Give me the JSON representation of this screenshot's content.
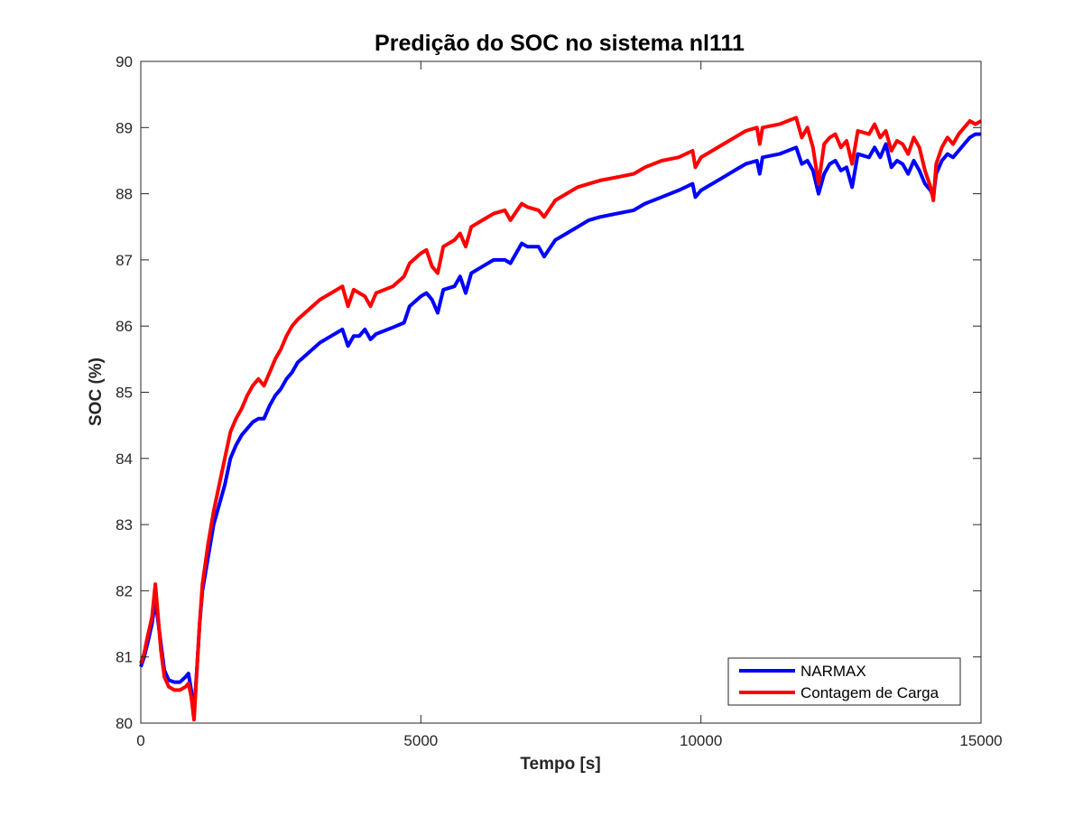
{
  "chart_data": {
    "type": "line",
    "title": "Predição do SOC no sistema nl111",
    "xlabel": "Tempo [s]",
    "ylabel": "SOC (%)",
    "xlim": [
      0,
      15000
    ],
    "ylim": [
      80,
      90
    ],
    "xticks": [
      0,
      5000,
      10000,
      15000
    ],
    "xtick_labels": [
      "0",
      "5000",
      "10000",
      "15000"
    ],
    "yticks": [
      80,
      81,
      82,
      83,
      84,
      85,
      86,
      87,
      88,
      89,
      90
    ],
    "ytick_labels": [
      "80",
      "81",
      "82",
      "83",
      "84",
      "85",
      "86",
      "87",
      "88",
      "89",
      "90"
    ],
    "grid": false,
    "legend_position": "bottom-right",
    "series": [
      {
        "name": "NARMAX",
        "color": "#0000ff",
        "points": [
          [
            0,
            80.85
          ],
          [
            60,
            81.0
          ],
          [
            120,
            81.2
          ],
          [
            200,
            81.5
          ],
          [
            260,
            81.85
          ],
          [
            300,
            81.6
          ],
          [
            360,
            81.2
          ],
          [
            420,
            80.8
          ],
          [
            500,
            80.65
          ],
          [
            600,
            80.62
          ],
          [
            700,
            80.62
          ],
          [
            800,
            80.7
          ],
          [
            850,
            80.75
          ],
          [
            900,
            80.5
          ],
          [
            950,
            80.15
          ],
          [
            1000,
            80.8
          ],
          [
            1050,
            81.5
          ],
          [
            1100,
            82.0
          ],
          [
            1200,
            82.5
          ],
          [
            1300,
            83.0
          ],
          [
            1400,
            83.3
          ],
          [
            1500,
            83.6
          ],
          [
            1600,
            84.0
          ],
          [
            1700,
            84.2
          ],
          [
            1800,
            84.35
          ],
          [
            1900,
            84.45
          ],
          [
            2000,
            84.55
          ],
          [
            2100,
            84.6
          ],
          [
            2200,
            84.6
          ],
          [
            2300,
            84.8
          ],
          [
            2400,
            84.95
          ],
          [
            2500,
            85.05
          ],
          [
            2600,
            85.2
          ],
          [
            2700,
            85.3
          ],
          [
            2800,
            85.45
          ],
          [
            3000,
            85.6
          ],
          [
            3200,
            85.75
          ],
          [
            3400,
            85.85
          ],
          [
            3600,
            85.95
          ],
          [
            3700,
            85.7
          ],
          [
            3800,
            85.85
          ],
          [
            3900,
            85.85
          ],
          [
            4000,
            85.95
          ],
          [
            4100,
            85.8
          ],
          [
            4200,
            85.88
          ],
          [
            4500,
            85.98
          ],
          [
            4700,
            86.05
          ],
          [
            4800,
            86.3
          ],
          [
            5000,
            86.45
          ],
          [
            5100,
            86.5
          ],
          [
            5200,
            86.4
          ],
          [
            5300,
            86.2
          ],
          [
            5400,
            86.55
          ],
          [
            5600,
            86.6
          ],
          [
            5700,
            86.75
          ],
          [
            5800,
            86.5
          ],
          [
            5900,
            86.8
          ],
          [
            6100,
            86.9
          ],
          [
            6300,
            87.0
          ],
          [
            6500,
            87.0
          ],
          [
            6600,
            86.95
          ],
          [
            6800,
            87.25
          ],
          [
            6900,
            87.2
          ],
          [
            7100,
            87.2
          ],
          [
            7200,
            87.05
          ],
          [
            7400,
            87.3
          ],
          [
            7600,
            87.4
          ],
          [
            7800,
            87.5
          ],
          [
            8000,
            87.6
          ],
          [
            8200,
            87.65
          ],
          [
            8500,
            87.7
          ],
          [
            8800,
            87.75
          ],
          [
            9000,
            87.85
          ],
          [
            9300,
            87.95
          ],
          [
            9600,
            88.05
          ],
          [
            9850,
            88.15
          ],
          [
            9900,
            87.95
          ],
          [
            10000,
            88.05
          ],
          [
            10200,
            88.15
          ],
          [
            10400,
            88.25
          ],
          [
            10600,
            88.35
          ],
          [
            10800,
            88.45
          ],
          [
            11000,
            88.5
          ],
          [
            11050,
            88.3
          ],
          [
            11100,
            88.55
          ],
          [
            11400,
            88.6
          ],
          [
            11700,
            88.7
          ],
          [
            11800,
            88.45
          ],
          [
            11900,
            88.5
          ],
          [
            12000,
            88.35
          ],
          [
            12100,
            88.0
          ],
          [
            12200,
            88.3
          ],
          [
            12300,
            88.45
          ],
          [
            12400,
            88.5
          ],
          [
            12500,
            88.35
          ],
          [
            12600,
            88.4
          ],
          [
            12700,
            88.1
          ],
          [
            12800,
            88.6
          ],
          [
            13000,
            88.55
          ],
          [
            13100,
            88.7
          ],
          [
            13200,
            88.55
          ],
          [
            13300,
            88.75
          ],
          [
            13400,
            88.4
          ],
          [
            13500,
            88.5
          ],
          [
            13600,
            88.45
          ],
          [
            13700,
            88.3
          ],
          [
            13800,
            88.5
          ],
          [
            13900,
            88.35
          ],
          [
            14000,
            88.15
          ],
          [
            14100,
            88.05
          ],
          [
            14150,
            87.95
          ],
          [
            14200,
            88.3
          ],
          [
            14300,
            88.5
          ],
          [
            14400,
            88.6
          ],
          [
            14500,
            88.55
          ],
          [
            14600,
            88.65
          ],
          [
            14700,
            88.75
          ],
          [
            14800,
            88.85
          ],
          [
            14900,
            88.9
          ],
          [
            15000,
            88.9
          ]
        ]
      },
      {
        "name": "Contagem de Carga",
        "color": "#ff0000",
        "points": [
          [
            0,
            80.9
          ],
          [
            60,
            81.05
          ],
          [
            120,
            81.3
          ],
          [
            200,
            81.6
          ],
          [
            260,
            82.1
          ],
          [
            300,
            81.7
          ],
          [
            360,
            81.1
          ],
          [
            420,
            80.7
          ],
          [
            500,
            80.55
          ],
          [
            600,
            80.5
          ],
          [
            700,
            80.5
          ],
          [
            800,
            80.55
          ],
          [
            850,
            80.6
          ],
          [
            900,
            80.4
          ],
          [
            950,
            80.05
          ],
          [
            1000,
            80.8
          ],
          [
            1050,
            81.5
          ],
          [
            1100,
            82.1
          ],
          [
            1200,
            82.7
          ],
          [
            1300,
            83.2
          ],
          [
            1400,
            83.6
          ],
          [
            1500,
            84.0
          ],
          [
            1600,
            84.4
          ],
          [
            1700,
            84.6
          ],
          [
            1800,
            84.75
          ],
          [
            1900,
            84.95
          ],
          [
            2000,
            85.1
          ],
          [
            2100,
            85.2
          ],
          [
            2200,
            85.1
          ],
          [
            2300,
            85.3
          ],
          [
            2400,
            85.5
          ],
          [
            2500,
            85.65
          ],
          [
            2600,
            85.85
          ],
          [
            2700,
            86.0
          ],
          [
            2800,
            86.1
          ],
          [
            3000,
            86.25
          ],
          [
            3200,
            86.4
          ],
          [
            3400,
            86.5
          ],
          [
            3600,
            86.6
          ],
          [
            3700,
            86.3
          ],
          [
            3800,
            86.55
          ],
          [
            3900,
            86.5
          ],
          [
            4000,
            86.45
          ],
          [
            4100,
            86.3
          ],
          [
            4200,
            86.5
          ],
          [
            4500,
            86.6
          ],
          [
            4700,
            86.75
          ],
          [
            4800,
            86.95
          ],
          [
            5000,
            87.1
          ],
          [
            5100,
            87.15
          ],
          [
            5200,
            86.9
          ],
          [
            5300,
            86.8
          ],
          [
            5400,
            87.2
          ],
          [
            5600,
            87.3
          ],
          [
            5700,
            87.4
          ],
          [
            5800,
            87.2
          ],
          [
            5900,
            87.5
          ],
          [
            6100,
            87.6
          ],
          [
            6300,
            87.7
          ],
          [
            6500,
            87.75
          ],
          [
            6600,
            87.6
          ],
          [
            6800,
            87.85
          ],
          [
            6900,
            87.8
          ],
          [
            7100,
            87.75
          ],
          [
            7200,
            87.65
          ],
          [
            7400,
            87.9
          ],
          [
            7600,
            88.0
          ],
          [
            7800,
            88.1
          ],
          [
            8000,
            88.15
          ],
          [
            8200,
            88.2
          ],
          [
            8500,
            88.25
          ],
          [
            8800,
            88.3
          ],
          [
            9000,
            88.4
          ],
          [
            9300,
            88.5
          ],
          [
            9600,
            88.55
          ],
          [
            9850,
            88.65
          ],
          [
            9900,
            88.4
          ],
          [
            10000,
            88.55
          ],
          [
            10200,
            88.65
          ],
          [
            10400,
            88.75
          ],
          [
            10600,
            88.85
          ],
          [
            10800,
            88.95
          ],
          [
            11000,
            89.0
          ],
          [
            11050,
            88.75
          ],
          [
            11100,
            89.0
          ],
          [
            11400,
            89.05
          ],
          [
            11700,
            89.15
          ],
          [
            11800,
            88.85
          ],
          [
            11900,
            89.0
          ],
          [
            12000,
            88.7
          ],
          [
            12100,
            88.15
          ],
          [
            12200,
            88.75
          ],
          [
            12300,
            88.85
          ],
          [
            12400,
            88.9
          ],
          [
            12500,
            88.7
          ],
          [
            12600,
            88.8
          ],
          [
            12700,
            88.45
          ],
          [
            12800,
            88.95
          ],
          [
            13000,
            88.9
          ],
          [
            13100,
            89.05
          ],
          [
            13200,
            88.85
          ],
          [
            13300,
            88.95
          ],
          [
            13400,
            88.65
          ],
          [
            13500,
            88.8
          ],
          [
            13600,
            88.75
          ],
          [
            13700,
            88.6
          ],
          [
            13800,
            88.85
          ],
          [
            13900,
            88.7
          ],
          [
            14000,
            88.35
          ],
          [
            14100,
            88.1
          ],
          [
            14150,
            87.9
          ],
          [
            14200,
            88.45
          ],
          [
            14300,
            88.7
          ],
          [
            14400,
            88.85
          ],
          [
            14500,
            88.75
          ],
          [
            14600,
            88.9
          ],
          [
            14700,
            89.0
          ],
          [
            14800,
            89.1
          ],
          [
            14900,
            89.05
          ],
          [
            15000,
            89.1
          ]
        ]
      }
    ]
  }
}
